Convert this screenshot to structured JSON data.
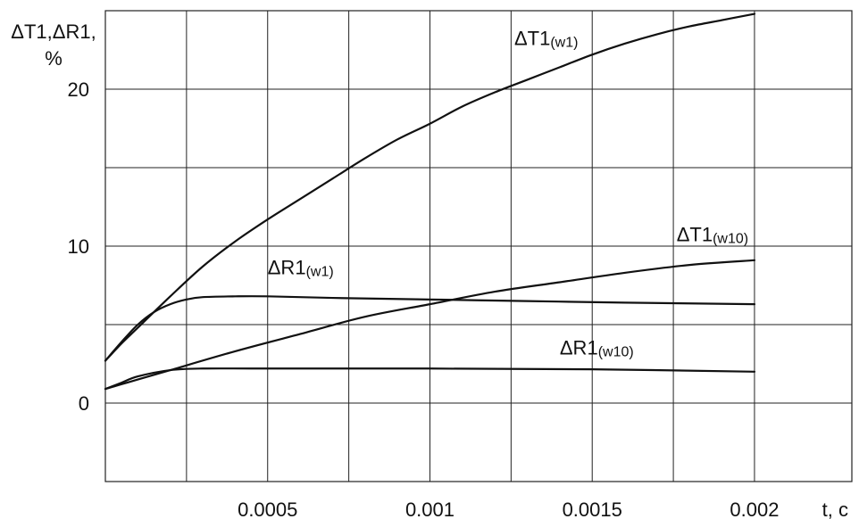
{
  "chart_data": {
    "type": "line",
    "title": "",
    "ylabel": "ΔT1,ΔR1,",
    "ylabel_unit": "%",
    "xlabel": "t, c",
    "xlim": [
      0,
      0.0023
    ],
    "ylim": [
      -5,
      25
    ],
    "x_ticks": [
      0.0005,
      0.001,
      0.0015,
      0.002
    ],
    "x_tick_labels": [
      "0.0005",
      "0.001",
      "0.0015",
      "0.002"
    ],
    "y_ticks": [
      0,
      10,
      20
    ],
    "y_tick_labels": [
      "0",
      "10",
      "20"
    ],
    "x_grid_every": 0.00025,
    "y_grid_every": 5,
    "grid": true,
    "series": [
      {
        "name": "ΔT1(w1)",
        "label_main": "ΔT1",
        "label_sub": "(w1)",
        "label_anchor": {
          "x": 0.00126,
          "y": 22.8
        },
        "x": [
          0,
          5e-05,
          0.0001,
          0.0002,
          0.0003,
          0.0004,
          0.0005,
          0.0006,
          0.0007,
          0.0008,
          0.0009,
          0.001,
          0.0011,
          0.0012,
          0.0013,
          0.0014,
          0.0015,
          0.0016,
          0.0017,
          0.0018,
          0.0019,
          0.002
        ],
        "values": [
          2.7,
          3.8,
          4.8,
          6.8,
          8.7,
          10.3,
          11.7,
          13.0,
          14.3,
          15.6,
          16.8,
          17.8,
          18.9,
          19.8,
          20.6,
          21.4,
          22.2,
          22.9,
          23.5,
          24.0,
          24.4,
          24.8
        ]
      },
      {
        "name": "ΔR1(w1)",
        "label_main": "ΔR1",
        "label_sub": "(w1)",
        "label_anchor": {
          "x": 0.0005,
          "y": 8.2
        },
        "x": [
          0,
          5e-05,
          0.0001,
          0.00015,
          0.0002,
          0.00025,
          0.0003,
          0.0004,
          0.0005,
          0.0007,
          0.001,
          0.0013,
          0.0016,
          0.002
        ],
        "values": [
          2.7,
          3.9,
          5.0,
          5.8,
          6.3,
          6.6,
          6.75,
          6.8,
          6.8,
          6.7,
          6.6,
          6.5,
          6.4,
          6.3
        ]
      },
      {
        "name": "ΔT1(w10)",
        "label_main": "ΔT1",
        "label_sub": "(w10)",
        "label_anchor": {
          "x": 0.00176,
          "y": 10.3
        },
        "x": [
          0,
          5e-05,
          0.0001,
          0.0002,
          0.0004,
          0.0006,
          0.0008,
          0.001,
          0.0012,
          0.0014,
          0.0016,
          0.0018,
          0.002
        ],
        "values": [
          0.9,
          1.2,
          1.5,
          2.1,
          3.3,
          4.4,
          5.5,
          6.3,
          7.1,
          7.7,
          8.3,
          8.8,
          9.1
        ]
      },
      {
        "name": "ΔR1(w10)",
        "label_main": "ΔR1",
        "label_sub": "(w10)",
        "label_anchor": {
          "x": 0.0014,
          "y": 3.1
        },
        "x": [
          0,
          5e-05,
          0.0001,
          0.0002,
          0.0003,
          0.0005,
          0.001,
          0.0015,
          0.002
        ],
        "values": [
          0.9,
          1.3,
          1.7,
          2.1,
          2.2,
          2.2,
          2.2,
          2.15,
          2.0
        ]
      }
    ]
  }
}
